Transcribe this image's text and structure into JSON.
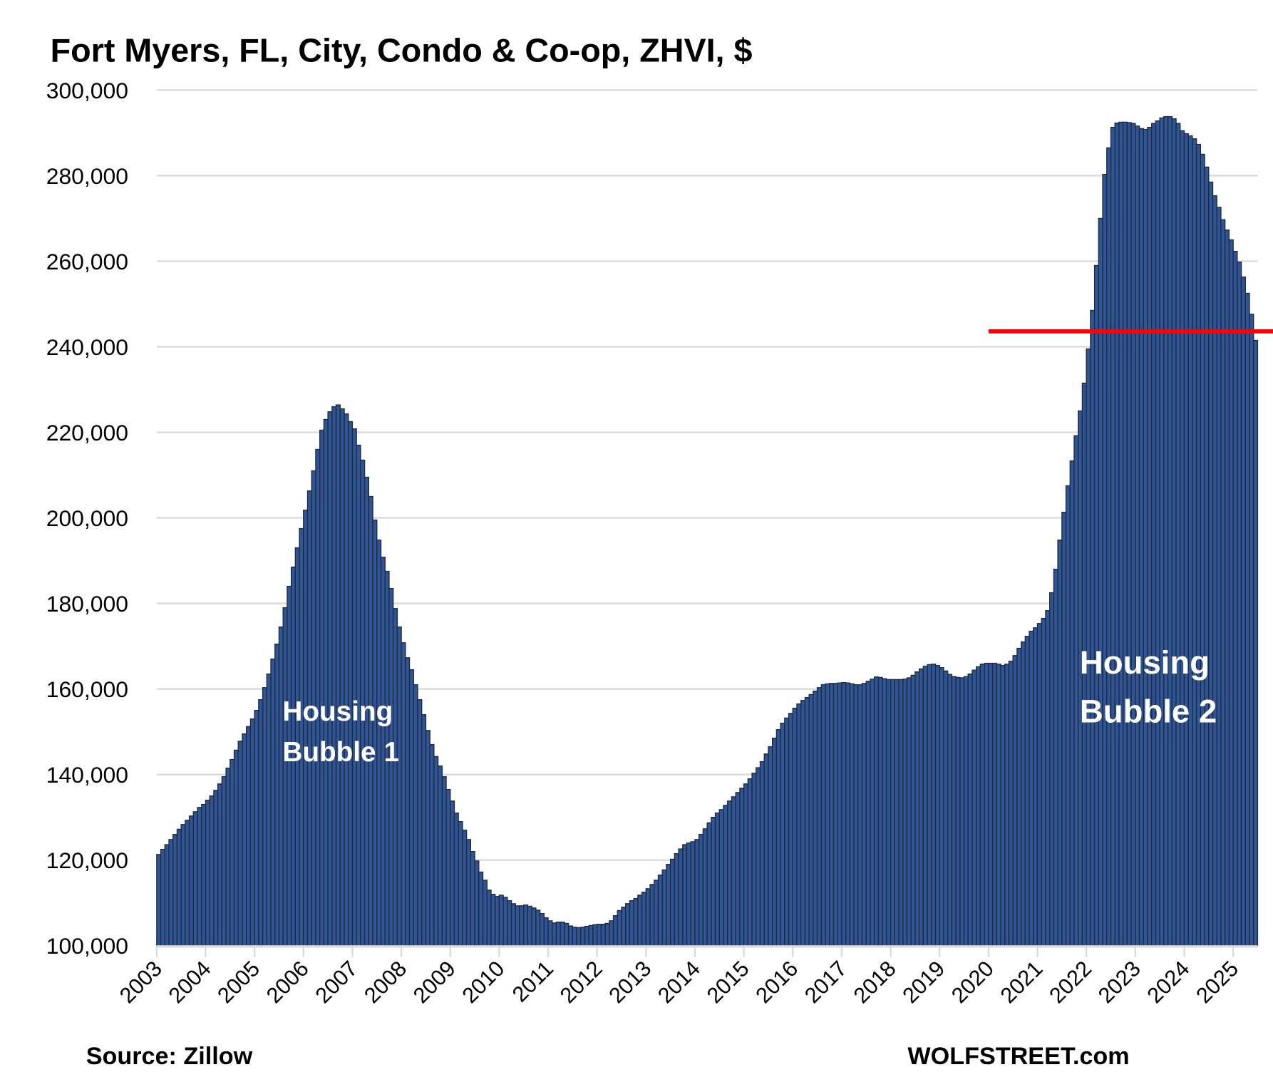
{
  "chart_data": {
    "type": "bar",
    "title": "Fort Myers, FL, City, Condo & Co-op, ZHVI, $",
    "xlabel": "",
    "ylabel": "",
    "ylim": [
      100000,
      300000
    ],
    "yticks": [
      "100,000",
      "120,000",
      "140,000",
      "160,000",
      "180,000",
      "200,000",
      "220,000",
      "240,000",
      "260,000",
      "280,000",
      "300,000"
    ],
    "xticks": [
      "2003",
      "2004",
      "2005",
      "2006",
      "2007",
      "2008",
      "2009",
      "2010",
      "2011",
      "2012",
      "2013",
      "2014",
      "2015",
      "2016",
      "2017",
      "2018",
      "2019",
      "2020",
      "2021",
      "2022",
      "2023",
      "2024",
      "2025"
    ],
    "start": "2003-01",
    "frequency": "monthly",
    "grid": true,
    "bar_color": "#2f5597",
    "bar_edge_color": "#1f2a3c",
    "values": [
      121300,
      122500,
      123600,
      124800,
      126000,
      127200,
      128300,
      129300,
      130300,
      131300,
      132300,
      133000,
      134000,
      135000,
      136300,
      137800,
      139500,
      141500,
      143500,
      145700,
      147800,
      149500,
      151200,
      153000,
      155000,
      157500,
      160300,
      163500,
      167000,
      170500,
      174500,
      179000,
      184000,
      188500,
      193000,
      197500,
      201800,
      206300,
      211000,
      216000,
      220500,
      223000,
      224800,
      226000,
      226400,
      225500,
      224300,
      222500,
      220800,
      217000,
      213500,
      209500,
      205000,
      199500,
      194800,
      190800,
      187500,
      183500,
      178800,
      174500,
      170800,
      167300,
      164500,
      161000,
      157500,
      154000,
      150300,
      147000,
      144200,
      142000,
      139500,
      136500,
      133800,
      131000,
      129000,
      127000,
      124800,
      122000,
      119800,
      117200,
      115300,
      113000,
      112000,
      111500,
      111800,
      111300,
      110500,
      109800,
      109300,
      109300,
      109500,
      109200,
      108800,
      108300,
      107500,
      106500,
      105800,
      105300,
      105500,
      105500,
      105200,
      104600,
      104300,
      104200,
      104300,
      104500,
      104700,
      104900,
      105000,
      105000,
      105200,
      105800,
      107000,
      108200,
      109000,
      109800,
      110500,
      111000,
      111800,
      112500,
      113300,
      114300,
      115300,
      116500,
      117700,
      119000,
      120200,
      121500,
      122600,
      123600,
      124000,
      124300,
      124800,
      126000,
      127300,
      128700,
      130000,
      131000,
      131800,
      132800,
      133800,
      134800,
      135800,
      136800,
      137800,
      139000,
      140300,
      141600,
      143000,
      144800,
      146500,
      148500,
      150500,
      152000,
      153200,
      154300,
      155500,
      156500,
      157300,
      158000,
      158700,
      159500,
      160300,
      161000,
      161200,
      161300,
      161300,
      161400,
      161500,
      161400,
      161200,
      161000,
      161000,
      161300,
      161800,
      162300,
      162800,
      162700,
      162400,
      162200,
      162200,
      162200,
      162200,
      162300,
      162600,
      163200,
      164000,
      164700,
      165300,
      165700,
      165800,
      165500,
      165000,
      164200,
      163400,
      162900,
      162700,
      162600,
      162900,
      163500,
      164400,
      165200,
      165800,
      166000,
      166000,
      166000,
      165800,
      165500,
      165800,
      166500,
      167800,
      169500,
      171000,
      172300,
      173500,
      174300,
      175300,
      176500,
      178300,
      182500,
      188000,
      194800,
      201300,
      207500,
      213300,
      219200,
      225000,
      231500,
      239500,
      248500,
      259000,
      270000,
      280300,
      286500,
      291300,
      292300,
      292500,
      292500,
      292400,
      292200,
      291600,
      291000,
      290800,
      291300,
      292200,
      292800,
      293500,
      293800,
      293800,
      293300,
      292200,
      290500,
      289800,
      289300,
      288600,
      287300,
      285000,
      282000,
      278500,
      275300,
      272600,
      269700,
      267300,
      265000,
      262300,
      259800,
      256300,
      252500,
      247600,
      241500
    ],
    "reference_line": {
      "value": 243600,
      "from": "2020-01",
      "color": "#ff0000"
    },
    "annotations": [
      {
        "lines": [
          "Housing",
          "Bubble 1"
        ],
        "at": "2006"
      },
      {
        "lines": [
          "Housing",
          "Bubble 2"
        ],
        "at": "2022-2024"
      }
    ],
    "source": "Source: Zillow",
    "credit": "WOLFSTREET.com"
  }
}
